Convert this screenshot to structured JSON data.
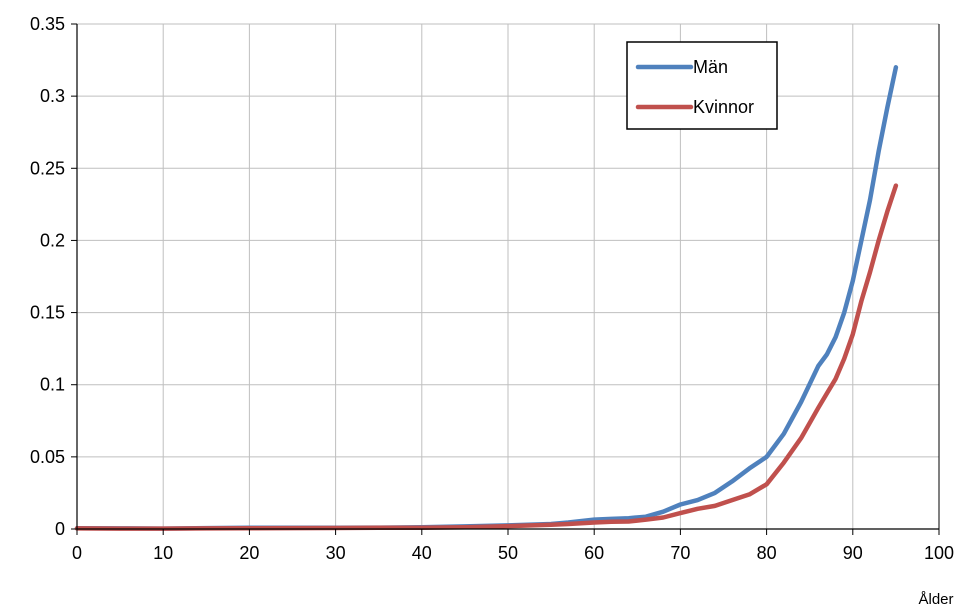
{
  "chart_data": {
    "type": "line",
    "title": "",
    "xlabel": "Ålder",
    "ylabel": "",
    "xlim": [
      0,
      100
    ],
    "ylim": [
      0,
      0.35
    ],
    "x_ticks": [
      0,
      10,
      20,
      30,
      40,
      50,
      60,
      70,
      80,
      90,
      100
    ],
    "y_ticks": [
      0,
      0.05,
      0.1,
      0.15,
      0.2,
      0.25,
      0.3,
      0.35
    ],
    "y_tick_labels": [
      "0",
      "0.05",
      "0.1",
      "0.15",
      "0.2",
      "0.25",
      "0.3",
      "0.35"
    ],
    "grid": true,
    "legend_position": "top-right",
    "x": [
      0,
      5,
      10,
      15,
      20,
      25,
      30,
      35,
      40,
      45,
      50,
      55,
      57,
      60,
      62,
      64,
      66,
      68,
      70,
      72,
      74,
      76,
      78,
      80,
      82,
      84,
      86,
      87,
      88,
      89,
      90,
      91,
      92,
      93,
      94,
      95
    ],
    "series": [
      {
        "name": "Män",
        "color": "#4f81bd",
        "values": [
          0.0005,
          0.0004,
          0.0003,
          0.0006,
          0.0008,
          0.0008,
          0.0009,
          0.001,
          0.0012,
          0.0018,
          0.0025,
          0.0035,
          0.0045,
          0.0065,
          0.007,
          0.0075,
          0.0085,
          0.012,
          0.017,
          0.02,
          0.025,
          0.033,
          0.042,
          0.05,
          0.066,
          0.088,
          0.113,
          0.121,
          0.133,
          0.15,
          0.172,
          0.2,
          0.228,
          0.262,
          0.292,
          0.32
        ]
      },
      {
        "name": "Kvinnor",
        "color": "#c0504d",
        "values": [
          0.0004,
          0.0003,
          0.0003,
          0.0004,
          0.0005,
          0.0006,
          0.0007,
          0.0008,
          0.0009,
          0.0012,
          0.002,
          0.003,
          0.0035,
          0.0045,
          0.005,
          0.0052,
          0.0065,
          0.008,
          0.011,
          0.014,
          0.016,
          0.02,
          0.024,
          0.031,
          0.046,
          0.063,
          0.084,
          0.094,
          0.104,
          0.118,
          0.135,
          0.158,
          0.178,
          0.2,
          0.22,
          0.238
        ]
      }
    ]
  }
}
